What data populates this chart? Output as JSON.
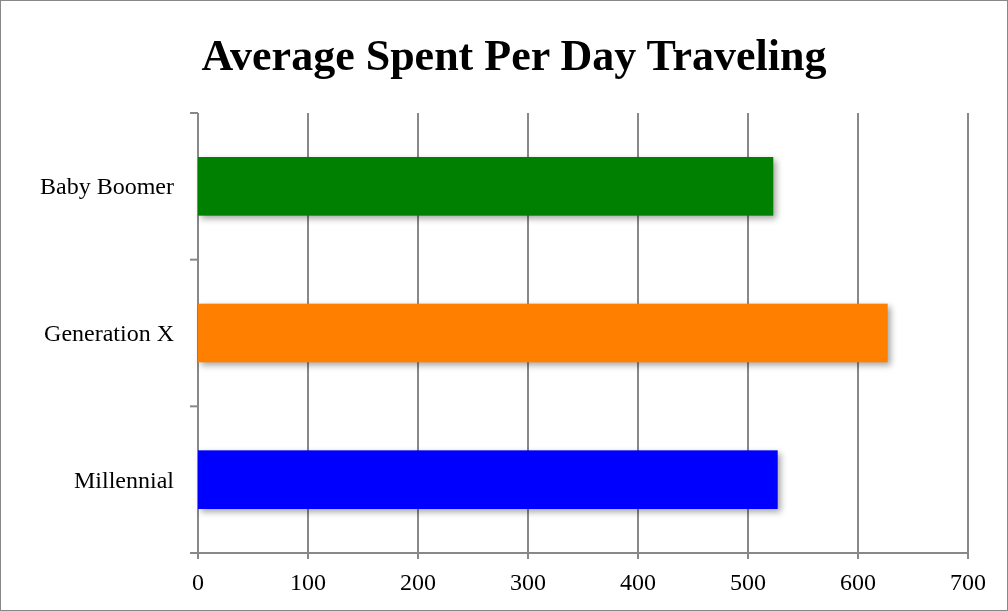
{
  "chart_data": {
    "type": "bar",
    "orientation": "horizontal",
    "title": "Average Spent Per Day Traveling",
    "categories": [
      "Baby Boomer",
      "Generation X",
      "Millennial"
    ],
    "values": [
      523,
      627,
      527
    ],
    "colors": [
      "#008000",
      "#ff8000",
      "#0000ff"
    ],
    "xlim": [
      0,
      700
    ],
    "xticks": [
      0,
      100,
      200,
      300,
      400,
      500,
      600,
      700
    ],
    "grid": "x"
  }
}
